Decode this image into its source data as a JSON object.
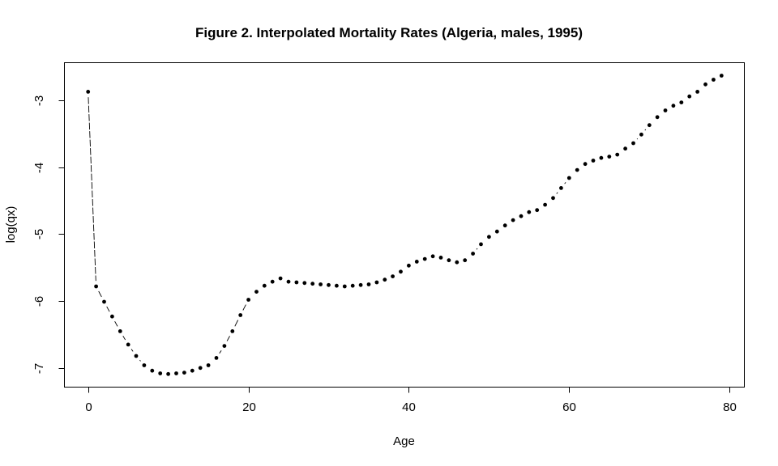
{
  "figure": {
    "title": "Figure 2. Interpolated Mortality Rates (Algeria, males, 1995)"
  },
  "chart_data": {
    "type": "scatter",
    "subtype": "points-with-connector-segments (R plot type='b', pch=19)",
    "title": "Figure 2. Interpolated Mortality Rates (Algeria, males, 1995)",
    "xlabel": "Age",
    "ylabel": "log(qx)",
    "xlim": [
      -3.0,
      81.8
    ],
    "ylim": [
      -7.28,
      -2.43
    ],
    "x_ticks": [
      0,
      20,
      40,
      60,
      80
    ],
    "y_ticks": [
      -7,
      -6,
      -5,
      -4,
      -3
    ],
    "grid": false,
    "legend": null,
    "background": "#ffffff",
    "point_color": "#000000",
    "line_color": "#000000",
    "x": [
      0,
      1,
      2,
      3,
      4,
      5,
      6,
      7,
      8,
      9,
      10,
      11,
      12,
      13,
      14,
      15,
      16,
      17,
      18,
      19,
      20,
      21,
      22,
      23,
      24,
      25,
      26,
      27,
      28,
      29,
      30,
      31,
      32,
      33,
      34,
      35,
      36,
      37,
      38,
      39,
      40,
      41,
      42,
      43,
      44,
      45,
      46,
      47,
      48,
      49,
      50,
      51,
      52,
      53,
      54,
      55,
      56,
      57,
      58,
      59,
      60,
      61,
      62,
      63,
      64,
      65,
      66,
      67,
      68,
      69,
      70,
      71,
      72,
      73,
      74,
      75,
      76,
      77,
      78,
      79
    ],
    "y": [
      -2.87,
      -5.78,
      -6.01,
      -6.23,
      -6.45,
      -6.65,
      -6.82,
      -6.96,
      -7.04,
      -7.08,
      -7.09,
      -7.08,
      -7.07,
      -7.04,
      -7.0,
      -6.96,
      -6.85,
      -6.67,
      -6.45,
      -6.21,
      -5.98,
      -5.86,
      -5.77,
      -5.71,
      -5.66,
      -5.71,
      -5.72,
      -5.73,
      -5.74,
      -5.75,
      -5.76,
      -5.77,
      -5.78,
      -5.77,
      -5.76,
      -5.75,
      -5.72,
      -5.68,
      -5.63,
      -5.56,
      -5.47,
      -5.41,
      -5.37,
      -5.33,
      -5.35,
      -5.39,
      -5.42,
      -5.39,
      -5.29,
      -5.15,
      -5.04,
      -4.96,
      -4.87,
      -4.79,
      -4.73,
      -4.67,
      -4.64,
      -4.56,
      -4.46,
      -4.31,
      -4.16,
      -4.04,
      -3.95,
      -3.9,
      -3.86,
      -3.84,
      -3.81,
      -3.72,
      -3.64,
      -3.51,
      -3.37,
      -3.25,
      -3.15,
      -3.08,
      -3.03,
      -2.94,
      -2.87,
      -2.76,
      -2.69,
      -2.63
    ]
  }
}
